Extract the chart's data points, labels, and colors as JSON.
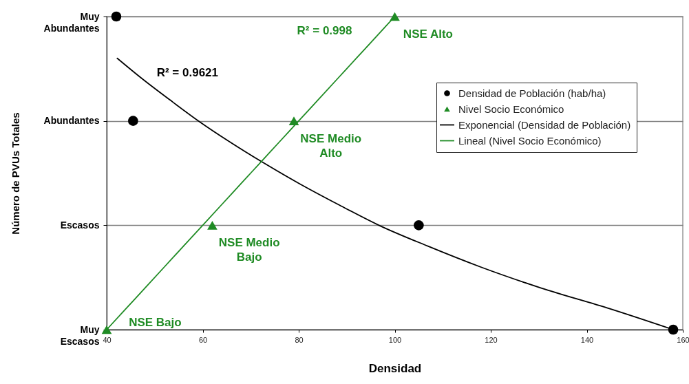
{
  "chart_data": {
    "type": "scatter",
    "orientation": "horizontal",
    "xlabel": "Densidad",
    "ylabel": "Número de PVUs Totales",
    "categories": [
      "Muy Abundantes",
      null,
      null,
      null,
      null,
      "Abundantes",
      null,
      null,
      null,
      null,
      "Escasos",
      null,
      null,
      null,
      null,
      "Muy Escasos"
    ],
    "xlim": [
      40,
      160
    ],
    "xticks": [
      40,
      60,
      80,
      100,
      120,
      140,
      160
    ],
    "grid": "y",
    "legend": "top right",
    "series": [
      {
        "name": "Densidad de Población (hab/ha)",
        "marker": "circle",
        "color": "#000000",
        "values": [
          42,
          null,
          null,
          null,
          null,
          45.5,
          null,
          null,
          null,
          null,
          105,
          null,
          null,
          null,
          null,
          158
        ]
      },
      {
        "name": "Nivel Socio Económico",
        "marker": "triangle",
        "color": "#1f8b24",
        "values": [
          100,
          null,
          null,
          null,
          null,
          79,
          null,
          null,
          null,
          null,
          62,
          null,
          null,
          null,
          null,
          40
        ]
      },
      {
        "name": "Exponencial (Densidad de Población)",
        "type": "line",
        "color": "#000000",
        "values": [
          null,
          null,
          42.2,
          47.5,
          53.2,
          59.1,
          65.6,
          72.6,
          80.1,
          88.2,
          96.7,
          106.9,
          117.9,
          130.4,
          144.8,
          158
        ]
      },
      {
        "name": "Lineal (Nivel Socio Económico)",
        "type": "line",
        "color": "#1f8b24",
        "values": [
          100,
          96,
          92,
          88,
          84,
          80,
          76,
          72,
          68,
          64,
          60,
          56,
          52,
          48,
          44,
          40
        ]
      }
    ],
    "annotations": [
      "R² = 0.9621",
      "R² = 0.998",
      {
        "text": "NSE Alto",
        "x": 100,
        "y": "Muy Abundantes"
      },
      {
        "text": "NSE Medio Alto",
        "x": 79,
        "y": "Abundantes"
      },
      {
        "text": "NSE Medio Bajo",
        "x": 62,
        "y": "Escasos"
      },
      {
        "text": "NSE Bajo",
        "x": 40,
        "y": "Muy Escasos"
      }
    ]
  }
}
